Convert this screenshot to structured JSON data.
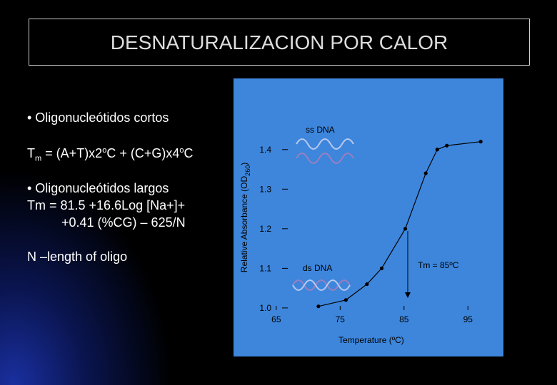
{
  "title": "DESNATURALIZACION POR CALOR",
  "bullets": {
    "short": "• Oligonucleótidos cortos",
    "formula1": [
      "T",
      "m",
      " = (A+T)x2",
      "o",
      "C + (C+G)x4",
      "o",
      "C"
    ],
    "long": "• Oligonucleótidos largos",
    "formula2": [
      "Tm = 81.5 +16.6Log [Na+]+",
      "+0.41 (%CG) – 625/N"
    ],
    "note": "N –length of oligo"
  },
  "chart_data": {
    "type": "line",
    "xlabel": "Temperature (ºC)",
    "ylabel": [
      "Relative Absorbance (OD",
      "260",
      ")"
    ],
    "x": [
      71.6,
      75.9,
      79.2,
      81.5,
      85.2,
      88.4,
      90.2,
      91.7,
      97.0
    ],
    "series": [
      {
        "color": "#000000",
        "values": [
          1.004,
          1.02,
          1.06,
          1.1,
          1.2,
          1.34,
          1.4,
          1.41,
          1.42
        ]
      }
    ],
    "xlim": [
      62,
      100
    ],
    "ylim": [
      0.98,
      1.45
    ],
    "xticks": [
      65,
      75,
      85,
      95
    ],
    "yticks": [
      {
        "value": 1.0,
        "label": "1.0"
      },
      1.1,
      1.2,
      1.3,
      1.4
    ],
    "annotations": [
      "ss DNA",
      "ds DNA",
      "Tm = 85ºC"
    ]
  }
}
